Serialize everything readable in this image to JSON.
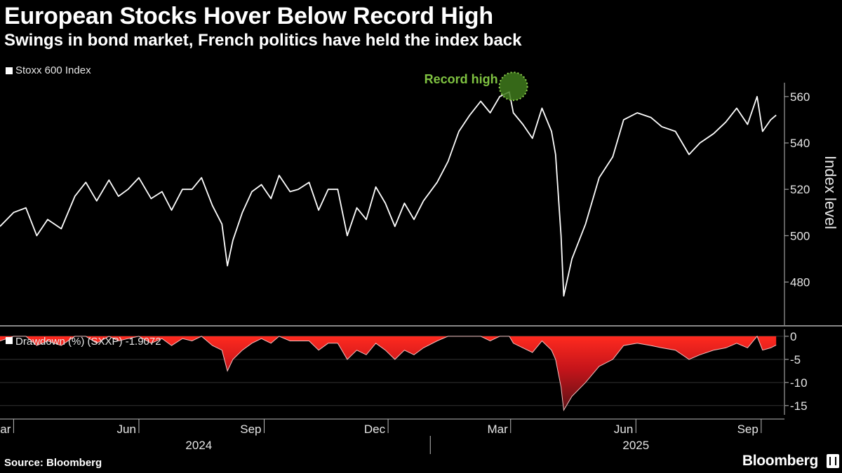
{
  "header": {
    "title": "European Stocks Hover Below Record High",
    "subtitle": "Swings in bond market, French politics have held the index back"
  },
  "footer": {
    "source": "Source: Bloomberg",
    "brand": "Bloomberg"
  },
  "colors": {
    "background": "#000000",
    "line": "#ffffff",
    "drawdown_fill": "#e8191a",
    "annotation": "#7fc241"
  },
  "chart_data": [
    {
      "type": "line",
      "series": [
        {
          "name": "Stoxx 600 Index",
          "color": "#ffffff"
        }
      ],
      "ylabel": "Index level",
      "ylim": [
        462,
        566
      ],
      "yticks": [
        480,
        500,
        520,
        540,
        560
      ],
      "annotation": {
        "label": "Record high",
        "x": "2025-03-03",
        "y": 562
      },
      "x": [
        "2024-02-20",
        "2024-03-01",
        "2024-03-10",
        "2024-03-18",
        "2024-03-26",
        "2024-04-05",
        "2024-04-15",
        "2024-04-23",
        "2024-05-01",
        "2024-05-10",
        "2024-05-17",
        "2024-05-24",
        "2024-06-01",
        "2024-06-10",
        "2024-06-18",
        "2024-06-25",
        "2024-07-03",
        "2024-07-10",
        "2024-07-17",
        "2024-07-25",
        "2024-08-01",
        "2024-08-05",
        "2024-08-09",
        "2024-08-16",
        "2024-08-23",
        "2024-08-30",
        "2024-09-06",
        "2024-09-12",
        "2024-09-20",
        "2024-09-26",
        "2024-10-04",
        "2024-10-11",
        "2024-10-18",
        "2024-10-25",
        "2024-11-01",
        "2024-11-08",
        "2024-11-15",
        "2024-11-22",
        "2024-11-29",
        "2024-12-06",
        "2024-12-13",
        "2024-12-20",
        "2024-12-27",
        "2025-01-06",
        "2025-01-14",
        "2025-01-22",
        "2025-01-30",
        "2025-02-07",
        "2025-02-14",
        "2025-02-21",
        "2025-02-28",
        "2025-03-03",
        "2025-03-10",
        "2025-03-17",
        "2025-03-24",
        "2025-03-31",
        "2025-04-03",
        "2025-04-07",
        "2025-04-09",
        "2025-04-15",
        "2025-04-25",
        "2025-05-05",
        "2025-05-15",
        "2025-05-23",
        "2025-06-02",
        "2025-06-12",
        "2025-06-20",
        "2025-06-30",
        "2025-07-10",
        "2025-07-18",
        "2025-07-28",
        "2025-08-06",
        "2025-08-14",
        "2025-08-22",
        "2025-08-29",
        "2025-09-02",
        "2025-09-08",
        "2025-09-12"
      ],
      "y": [
        504,
        510,
        512,
        500,
        507,
        503,
        517,
        523,
        515,
        524,
        517,
        520,
        525,
        516,
        519,
        511,
        520,
        520,
        525,
        513,
        505,
        487,
        498,
        510,
        519,
        522,
        516,
        526,
        519,
        520,
        523,
        511,
        520,
        520,
        500,
        512,
        507,
        521,
        514,
        504,
        514,
        507,
        515,
        523,
        532,
        545,
        552,
        558,
        553,
        560,
        562,
        553,
        548,
        542,
        555,
        545,
        535,
        500,
        474,
        490,
        505,
        525,
        534,
        550,
        553,
        551,
        547,
        545,
        535,
        540,
        544,
        549,
        555,
        548,
        560,
        545,
        550,
        552
      ]
    },
    {
      "type": "area",
      "series": [
        {
          "name": "Drawdown (%) (SXXP) -1.9072",
          "color": "#e8191a"
        }
      ],
      "ylim": [
        -17,
        1.5
      ],
      "yticks": [
        0,
        -5,
        -10,
        -15
      ],
      "x": [
        "2024-02-20",
        "2024-03-01",
        "2024-03-10",
        "2024-03-18",
        "2024-03-26",
        "2024-04-05",
        "2024-04-15",
        "2024-04-23",
        "2024-05-01",
        "2024-05-10",
        "2024-05-17",
        "2024-05-24",
        "2024-06-01",
        "2024-06-10",
        "2024-06-18",
        "2024-06-25",
        "2024-07-03",
        "2024-07-10",
        "2024-07-17",
        "2024-07-25",
        "2024-08-01",
        "2024-08-05",
        "2024-08-09",
        "2024-08-16",
        "2024-08-23",
        "2024-08-30",
        "2024-09-06",
        "2024-09-12",
        "2024-09-20",
        "2024-09-26",
        "2024-10-04",
        "2024-10-11",
        "2024-10-18",
        "2024-10-25",
        "2024-11-01",
        "2024-11-08",
        "2024-11-15",
        "2024-11-22",
        "2024-11-29",
        "2024-12-06",
        "2024-12-13",
        "2024-12-20",
        "2024-12-27",
        "2025-01-06",
        "2025-01-14",
        "2025-01-22",
        "2025-01-30",
        "2025-02-07",
        "2025-02-14",
        "2025-02-21",
        "2025-02-28",
        "2025-03-03",
        "2025-03-10",
        "2025-03-17",
        "2025-03-24",
        "2025-03-31",
        "2025-04-03",
        "2025-04-07",
        "2025-04-09",
        "2025-04-15",
        "2025-04-25",
        "2025-05-05",
        "2025-05-15",
        "2025-05-23",
        "2025-06-02",
        "2025-06-12",
        "2025-06-20",
        "2025-06-30",
        "2025-07-10",
        "2025-07-18",
        "2025-07-28",
        "2025-08-06",
        "2025-08-14",
        "2025-08-22",
        "2025-08-29",
        "2025-09-02",
        "2025-09-08",
        "2025-09-12"
      ],
      "y": [
        -1,
        0,
        0,
        -2,
        -1,
        -2,
        0,
        0,
        -1.5,
        0,
        -1,
        -0.5,
        0,
        -1.5,
        -0.5,
        -2,
        -0.5,
        -1,
        0,
        -2,
        -3,
        -7.5,
        -5,
        -3,
        -1.5,
        -0.5,
        -1.5,
        0,
        -1,
        -1,
        -1,
        -3,
        -1.5,
        -1.5,
        -5,
        -3,
        -4,
        -1.5,
        -3,
        -5,
        -3,
        -4,
        -2.5,
        -1,
        0,
        0,
        0,
        0,
        -1,
        0,
        0,
        -1.5,
        -2.5,
        -3.5,
        -1,
        -3,
        -5,
        -11,
        -16,
        -13,
        -10,
        -6.5,
        -5,
        -2,
        -1.5,
        -2,
        -2.5,
        -3,
        -5,
        -4,
        -3,
        -2.5,
        -1.5,
        -2.5,
        0,
        -3,
        -2.5,
        -1.9
      ]
    }
  ],
  "xaxis": {
    "months": [
      {
        "label": "Mar",
        "date": "2024-03-01"
      },
      {
        "label": "Jun",
        "date": "2024-06-01"
      },
      {
        "label": "Sep",
        "date": "2024-09-01"
      },
      {
        "label": "Dec",
        "date": "2024-12-01"
      },
      {
        "label": "Mar",
        "date": "2025-03-01"
      },
      {
        "label": "Jun",
        "date": "2025-06-01"
      },
      {
        "label": "Sep",
        "date": "2025-09-01"
      }
    ],
    "years": [
      {
        "label": "2024",
        "date": "2024-07-15"
      },
      {
        "label": "2025",
        "date": "2025-06-01"
      }
    ],
    "year_divider_date": "2025-01-01"
  }
}
